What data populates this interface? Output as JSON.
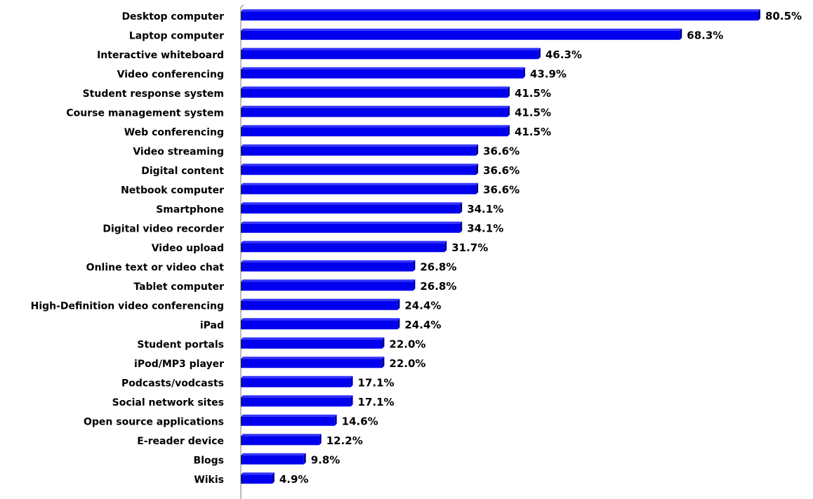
{
  "chart_data": {
    "type": "bar",
    "orientation": "horizontal",
    "categories": [
      "Desktop computer",
      "Laptop computer",
      "Interactive whiteboard",
      "Video conferencing",
      "Student response system",
      "Course management system",
      "Web conferencing",
      "Video streaming",
      "Digital content",
      "Netbook computer",
      "Smartphone",
      "Digital video recorder",
      "Video upload",
      "Online text or video chat",
      "Tablet computer",
      "High-Definition video conferencing",
      "iPad",
      "Student portals",
      "iPod/MP3 player",
      "Podcasts/vodcasts",
      "Social network sites",
      "Open source applications",
      "E-reader device",
      "Blogs",
      "Wikis"
    ],
    "values": [
      80.5,
      68.3,
      46.3,
      43.9,
      41.5,
      41.5,
      41.5,
      36.6,
      36.6,
      36.6,
      34.1,
      34.1,
      31.7,
      26.8,
      26.8,
      24.4,
      24.4,
      22.0,
      22.0,
      17.1,
      17.1,
      14.6,
      12.2,
      9.8,
      4.9
    ],
    "value_labels": [
      "80.5%",
      "68.3%",
      "46.3%",
      "43.9%",
      "41.5%",
      "41.5%",
      "41.5%",
      "36.6%",
      "36.6%",
      "36.6%",
      "34.1%",
      "34.1%",
      "31.7%",
      "26.8%",
      "26.8%",
      "24.4%",
      "24.4%",
      "22.0%",
      "22.0%",
      "17.1%",
      "17.1%",
      "14.6%",
      "12.2%",
      "9.8%",
      "4.9%"
    ],
    "xlim": [
      0,
      85
    ],
    "grid": false,
    "legend": "none",
    "bar_color": "#0000ee",
    "bar_shadow_color": "#00007a",
    "axis_color": "#a6a6a6"
  }
}
